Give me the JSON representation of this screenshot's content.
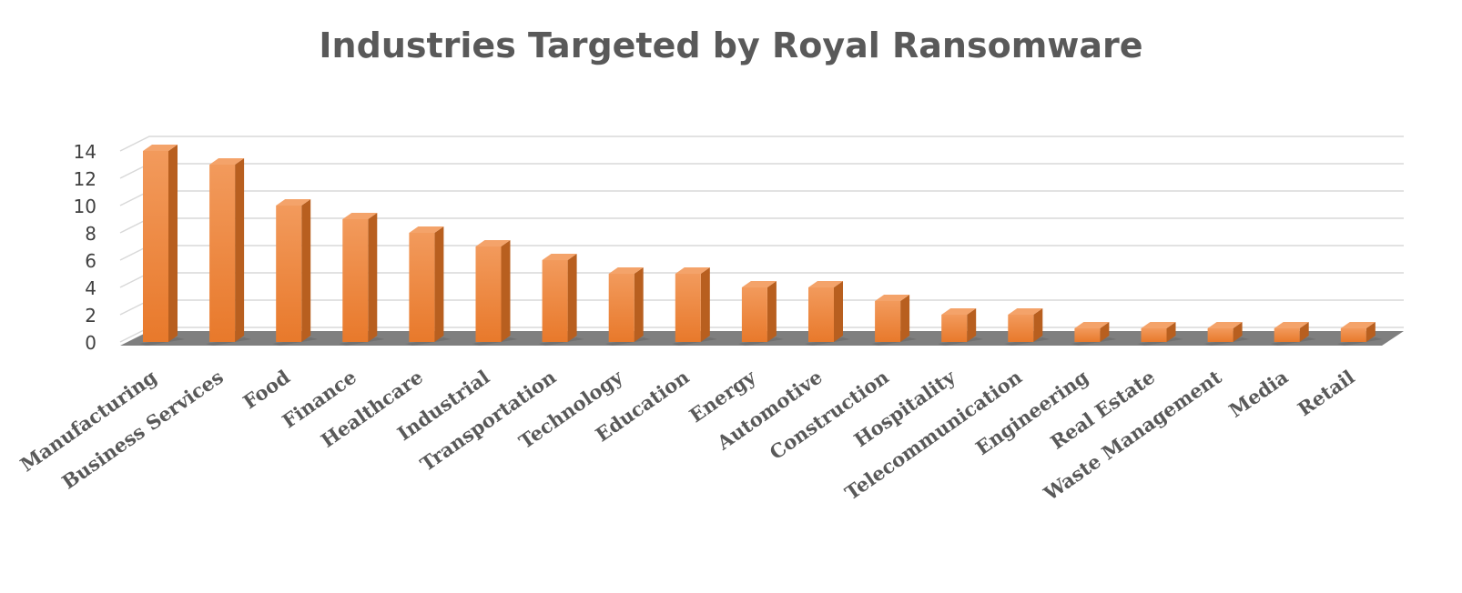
{
  "chart_data": {
    "type": "bar",
    "title": "Industries Targeted by Royal Ransomware",
    "xlabel": "",
    "ylabel": "",
    "categories": [
      "Manufacturing",
      "Business Services",
      "Food",
      "Finance",
      "Healthcare",
      "Industrial",
      "Transportation",
      "Technology",
      "Education",
      "Energy",
      "Automotive",
      "Construction",
      "Hospitality",
      "Telecommunication",
      "Engineering",
      "Real Estate",
      "Waste Management",
      "Media",
      "Retail"
    ],
    "values": [
      14,
      13,
      10,
      9,
      8,
      7,
      6,
      5,
      5,
      4,
      4,
      3,
      2,
      2,
      1,
      1,
      1,
      1,
      1
    ],
    "ylim": [
      0,
      14
    ],
    "yticks": [
      0,
      2,
      4,
      6,
      8,
      10,
      12,
      14
    ],
    "grid": true,
    "legend": "none",
    "style": "3d-column",
    "colors": {
      "bar_front": "#ED7D31",
      "bar_side": "#B85F1F",
      "bar_top": "#F4A36A",
      "floor": "#7f7f7f",
      "grid": "#d9d9d9"
    }
  }
}
